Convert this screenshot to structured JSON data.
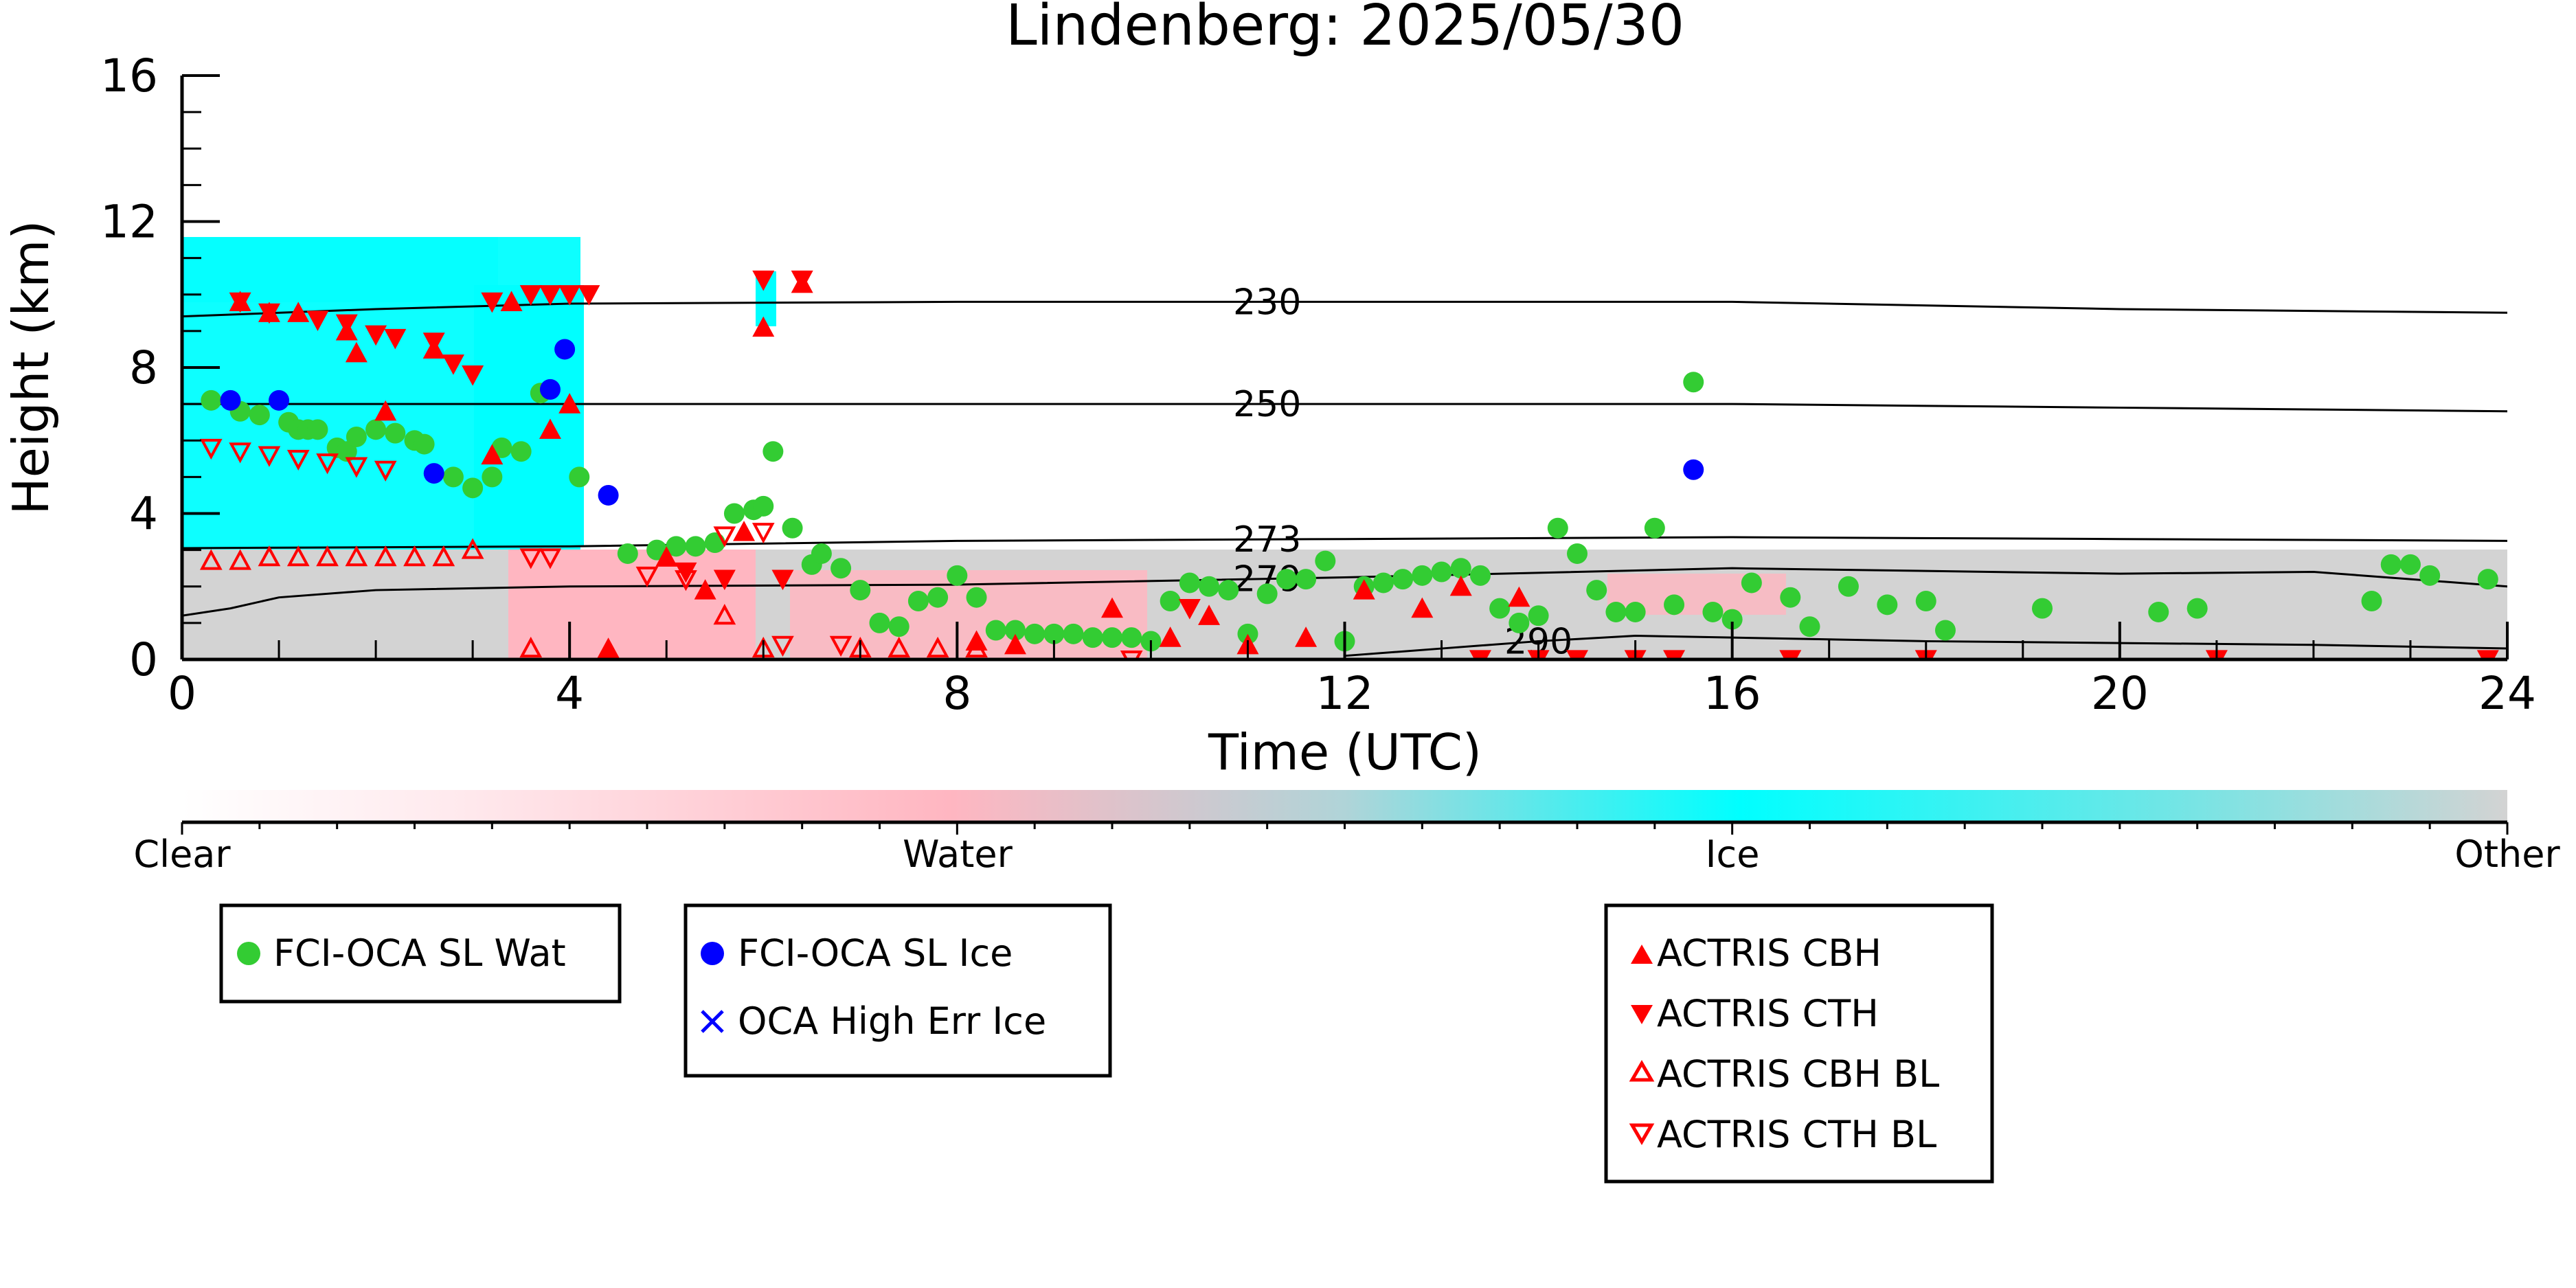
{
  "chart_data": {
    "type": "scatter",
    "title": "Lindenberg: 2025/05/30",
    "xlabel": "Time (UTC)",
    "ylabel": "Height (km)",
    "xlim": [
      0,
      24
    ],
    "ylim": [
      0,
      16
    ],
    "x_ticks": [
      0,
      4,
      8,
      12,
      16,
      20,
      24
    ],
    "y_ticks": [
      0,
      4,
      8,
      12,
      16
    ],
    "grid": false,
    "background": "cloud-radar classification (Clear / Water / Ice / Other)",
    "colorbar": {
      "labels": [
        "Clear",
        "Water",
        "Ice",
        "Other"
      ],
      "colors": [
        "#ffffff",
        "#ffb6c1",
        "#00ffff",
        "#d3d3d3"
      ]
    },
    "temperature_contours": [
      {
        "label": "230",
        "points": [
          [
            0,
            9.4
          ],
          [
            2,
            9.6
          ],
          [
            4,
            9.75
          ],
          [
            8,
            9.8
          ],
          [
            12,
            9.8
          ],
          [
            16,
            9.8
          ],
          [
            20,
            9.6
          ],
          [
            24,
            9.5
          ]
        ]
      },
      {
        "label": "250",
        "points": [
          [
            0,
            7.0
          ],
          [
            4,
            7.0
          ],
          [
            8,
            7.0
          ],
          [
            12,
            7.0
          ],
          [
            16,
            7.0
          ],
          [
            20,
            6.9
          ],
          [
            24,
            6.8
          ]
        ]
      },
      {
        "label": "273",
        "points": [
          [
            0,
            3.05
          ],
          [
            4,
            3.1
          ],
          [
            8,
            3.25
          ],
          [
            12,
            3.3
          ],
          [
            16,
            3.35
          ],
          [
            20,
            3.3
          ],
          [
            24,
            3.25
          ]
        ]
      },
      {
        "label": "279",
        "points": [
          [
            0,
            1.2
          ],
          [
            0.5,
            1.4
          ],
          [
            1,
            1.7
          ],
          [
            2,
            1.9
          ],
          [
            4,
            2.0
          ],
          [
            8,
            2.05
          ],
          [
            12,
            2.25
          ],
          [
            16,
            2.5
          ],
          [
            20,
            2.35
          ],
          [
            22,
            2.4
          ],
          [
            24,
            2.0
          ]
        ]
      },
      {
        "label": "290",
        "points": [
          [
            12,
            0.1
          ],
          [
            13,
            0.3
          ],
          [
            14,
            0.5
          ],
          [
            15,
            0.65
          ],
          [
            16,
            0.6
          ],
          [
            18,
            0.5
          ],
          [
            20,
            0.45
          ],
          [
            22,
            0.4
          ],
          [
            24,
            0.3
          ]
        ]
      }
    ],
    "series": [
      {
        "name": "FCI-OCA SL Wat",
        "color": "#33cc33",
        "marker": "circle",
        "points": [
          [
            0.3,
            7.1
          ],
          [
            0.6,
            6.8
          ],
          [
            0.8,
            6.7
          ],
          [
            1.1,
            6.5
          ],
          [
            1.2,
            6.3
          ],
          [
            1.3,
            6.3
          ],
          [
            1.4,
            6.3
          ],
          [
            1.6,
            5.8
          ],
          [
            1.7,
            5.7
          ],
          [
            1.8,
            6.1
          ],
          [
            2.0,
            6.3
          ],
          [
            2.2,
            6.2
          ],
          [
            2.4,
            6.0
          ],
          [
            2.5,
            5.9
          ],
          [
            2.8,
            5.0
          ],
          [
            3.0,
            4.7
          ],
          [
            3.2,
            5.0
          ],
          [
            3.3,
            5.8
          ],
          [
            3.5,
            5.7
          ],
          [
            3.7,
            7.3
          ],
          [
            4.1,
            5.0
          ],
          [
            4.6,
            2.9
          ],
          [
            4.9,
            3.0
          ],
          [
            5.1,
            3.1
          ],
          [
            5.3,
            3.1
          ],
          [
            5.5,
            3.2
          ],
          [
            5.7,
            4.0
          ],
          [
            5.9,
            4.1
          ],
          [
            6.0,
            4.2
          ],
          [
            6.1,
            5.7
          ],
          [
            6.3,
            3.6
          ],
          [
            6.5,
            2.6
          ],
          [
            6.6,
            2.9
          ],
          [
            6.8,
            2.5
          ],
          [
            7.0,
            1.9
          ],
          [
            7.2,
            1.0
          ],
          [
            7.4,
            0.9
          ],
          [
            7.6,
            1.6
          ],
          [
            7.8,
            1.7
          ],
          [
            8.0,
            2.3
          ],
          [
            8.2,
            1.7
          ],
          [
            8.4,
            0.8
          ],
          [
            8.6,
            0.8
          ],
          [
            8.8,
            0.7
          ],
          [
            9.0,
            0.7
          ],
          [
            9.2,
            0.7
          ],
          [
            9.4,
            0.6
          ],
          [
            9.6,
            0.6
          ],
          [
            9.8,
            0.6
          ],
          [
            10.0,
            0.5
          ],
          [
            10.2,
            1.6
          ],
          [
            10.4,
            2.1
          ],
          [
            10.6,
            2.0
          ],
          [
            10.8,
            1.9
          ],
          [
            11.0,
            0.7
          ],
          [
            11.2,
            1.8
          ],
          [
            11.4,
            2.2
          ],
          [
            11.6,
            2.2
          ],
          [
            11.8,
            2.7
          ],
          [
            12.0,
            0.5
          ],
          [
            12.2,
            2.0
          ],
          [
            12.4,
            2.1
          ],
          [
            12.6,
            2.2
          ],
          [
            12.8,
            2.3
          ],
          [
            13.0,
            2.4
          ],
          [
            13.2,
            2.5
          ],
          [
            13.4,
            2.3
          ],
          [
            13.6,
            1.4
          ],
          [
            13.8,
            1.0
          ],
          [
            14.0,
            1.2
          ],
          [
            14.2,
            3.6
          ],
          [
            14.4,
            2.9
          ],
          [
            14.6,
            1.9
          ],
          [
            14.8,
            1.3
          ],
          [
            15.0,
            1.3
          ],
          [
            15.2,
            3.6
          ],
          [
            15.4,
            1.5
          ],
          [
            15.6,
            7.6
          ],
          [
            15.8,
            1.3
          ],
          [
            16.0,
            1.1
          ],
          [
            16.2,
            2.1
          ],
          [
            16.6,
            1.7
          ],
          [
            16.8,
            0.9
          ],
          [
            17.2,
            2.0
          ],
          [
            17.6,
            1.5
          ],
          [
            18.0,
            1.6
          ],
          [
            18.2,
            0.8
          ],
          [
            19.2,
            1.4
          ],
          [
            20.4,
            1.3
          ],
          [
            20.8,
            1.4
          ],
          [
            22.6,
            1.6
          ],
          [
            22.8,
            2.6
          ],
          [
            23.0,
            2.6
          ],
          [
            23.2,
            2.3
          ],
          [
            23.8,
            2.2
          ]
        ]
      },
      {
        "name": "FCI-OCA SL Ice",
        "color": "#0000ff",
        "marker": "circle",
        "points": [
          [
            0.5,
            7.1
          ],
          [
            1.0,
            7.1
          ],
          [
            2.6,
            5.1
          ],
          [
            3.8,
            7.4
          ],
          [
            3.95,
            8.5
          ],
          [
            4.4,
            4.5
          ],
          [
            15.6,
            5.2
          ]
        ]
      },
      {
        "name": "OCA High Err Ice",
        "color": "#0000ff",
        "marker": "x",
        "points": []
      },
      {
        "name": "ACTRIS CBH",
        "color": "#ff0000",
        "marker": "triangle-up-filled",
        "points": [
          [
            0.6,
            9.8
          ],
          [
            0.9,
            9.5
          ],
          [
            1.2,
            9.5
          ],
          [
            1.7,
            9.0
          ],
          [
            1.8,
            8.4
          ],
          [
            2.1,
            6.8
          ],
          [
            2.6,
            8.5
          ],
          [
            3.2,
            5.6
          ],
          [
            3.4,
            9.8
          ],
          [
            3.8,
            6.3
          ],
          [
            4.0,
            7.0
          ],
          [
            4.4,
            0.3
          ],
          [
            5.0,
            2.8
          ],
          [
            5.4,
            1.9
          ],
          [
            5.8,
            3.5
          ],
          [
            6.0,
            9.1
          ],
          [
            6.4,
            10.3
          ],
          [
            8.2,
            0.5
          ],
          [
            8.6,
            0.4
          ],
          [
            9.6,
            1.4
          ],
          [
            10.2,
            0.6
          ],
          [
            10.6,
            1.2
          ],
          [
            11.0,
            0.4
          ],
          [
            11.6,
            0.6
          ],
          [
            12.2,
            1.9
          ],
          [
            12.8,
            1.4
          ],
          [
            13.2,
            2.0
          ],
          [
            13.8,
            1.7
          ]
        ]
      },
      {
        "name": "ACTRIS CTH",
        "color": "#ff0000",
        "marker": "triangle-down-filled",
        "points": [
          [
            0.6,
            9.8
          ],
          [
            0.9,
            9.5
          ],
          [
            1.4,
            9.3
          ],
          [
            1.7,
            9.2
          ],
          [
            2.0,
            8.9
          ],
          [
            2.2,
            8.8
          ],
          [
            2.6,
            8.7
          ],
          [
            2.8,
            8.1
          ],
          [
            3.0,
            7.8
          ],
          [
            3.2,
            9.8
          ],
          [
            3.6,
            10.0
          ],
          [
            3.8,
            10.0
          ],
          [
            4.0,
            10.0
          ],
          [
            4.2,
            10.0
          ],
          [
            5.2,
            2.4
          ],
          [
            5.6,
            2.2
          ],
          [
            6.0,
            10.4
          ],
          [
            6.2,
            2.2
          ],
          [
            6.4,
            10.4
          ],
          [
            10.4,
            1.4
          ],
          [
            13.4,
            0.0
          ],
          [
            14.0,
            0.0
          ],
          [
            14.4,
            0.0
          ],
          [
            15.0,
            0.0
          ],
          [
            15.4,
            0.0
          ],
          [
            16.6,
            0.0
          ],
          [
            18.0,
            0.0
          ],
          [
            21.0,
            0.0
          ],
          [
            23.8,
            0.0
          ]
        ]
      },
      {
        "name": "ACTRIS CBH BL",
        "color": "#ff0000",
        "marker": "triangle-up-open",
        "points": [
          [
            0.3,
            2.7
          ],
          [
            0.6,
            2.7
          ],
          [
            0.9,
            2.8
          ],
          [
            1.2,
            2.8
          ],
          [
            1.5,
            2.8
          ],
          [
            1.8,
            2.8
          ],
          [
            2.1,
            2.8
          ],
          [
            2.4,
            2.8
          ],
          [
            2.7,
            2.8
          ],
          [
            3.0,
            3.0
          ],
          [
            3.6,
            0.3
          ],
          [
            5.6,
            1.2
          ],
          [
            6.0,
            0.3
          ],
          [
            7.0,
            0.3
          ],
          [
            7.4,
            0.3
          ],
          [
            7.8,
            0.3
          ],
          [
            8.2,
            0.3
          ]
        ]
      },
      {
        "name": "ACTRIS CTH BL",
        "color": "#ff0000",
        "marker": "triangle-down-open",
        "points": [
          [
            0.3,
            5.8
          ],
          [
            0.6,
            5.7
          ],
          [
            0.9,
            5.6
          ],
          [
            1.2,
            5.5
          ],
          [
            1.5,
            5.4
          ],
          [
            1.8,
            5.3
          ],
          [
            2.1,
            5.2
          ],
          [
            3.6,
            2.8
          ],
          [
            3.8,
            2.8
          ],
          [
            4.8,
            2.3
          ],
          [
            5.2,
            2.2
          ],
          [
            5.6,
            3.4
          ],
          [
            6.0,
            3.5
          ],
          [
            6.2,
            0.4
          ],
          [
            6.8,
            0.4
          ],
          [
            9.8,
            0.0
          ]
        ]
      }
    ]
  },
  "legends": {
    "box1": [
      "FCI-OCA SL Wat"
    ],
    "box2": [
      "FCI-OCA SL Ice",
      "OCA High Err Ice"
    ],
    "box3": [
      "ACTRIS CBH",
      "ACTRIS CTH",
      "ACTRIS CBH BL",
      "ACTRIS CTH BL"
    ]
  }
}
